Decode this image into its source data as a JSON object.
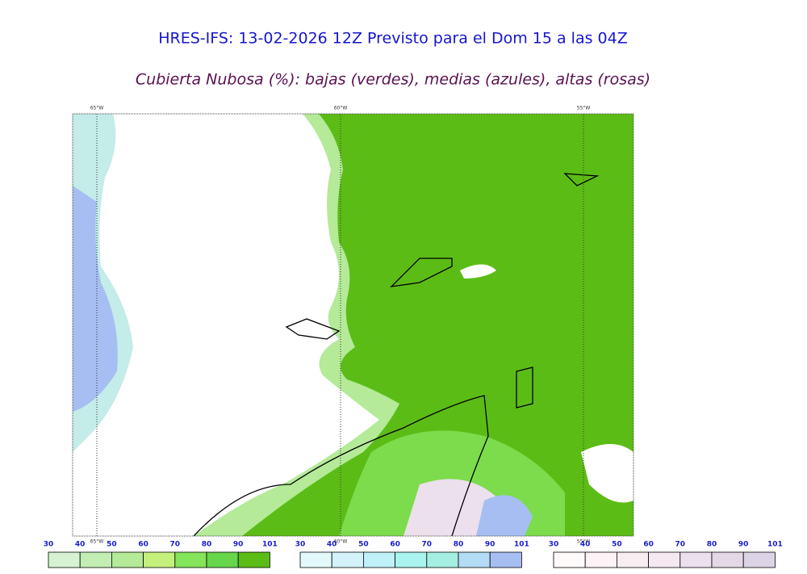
{
  "header": {
    "title": "HRES-IFS: 13-02-2026 12Z Previsto para el Dom 15 a las 04Z",
    "subtitle": "Cubierta Nubosa (%): bajas (verdes), medias (azules), altas (rosas)"
  },
  "map": {
    "meridians": [
      "65°W",
      "60°W",
      "55°W"
    ]
  },
  "legends": [
    {
      "ticks": [
        "30",
        "40",
        "50",
        "60",
        "70",
        "80",
        "90",
        "101"
      ],
      "colors": [
        "#d6f2d2",
        "#c2eeb4",
        "#b4ea98",
        "#c6f07c",
        "#84e45a",
        "#66d64a",
        "#5cbc16"
      ]
    },
    {
      "ticks": [
        "30",
        "40",
        "50",
        "60",
        "70",
        "80",
        "90",
        "101"
      ],
      "colors": [
        "#e4fafa",
        "#d4f2fa",
        "#c0f0f8",
        "#aaf4f0",
        "#a4eee2",
        "#b4dcf4",
        "#a6bef2"
      ]
    },
    {
      "ticks": [
        "30",
        "40",
        "50",
        "60",
        "70",
        "80",
        "90",
        "101"
      ],
      "colors": [
        "#fefafa",
        "#fbf3f5",
        "#f8eef2",
        "#f6e8f0",
        "#ece0ec",
        "#e4d8e6",
        "#dcd4e6"
      ]
    }
  ]
}
